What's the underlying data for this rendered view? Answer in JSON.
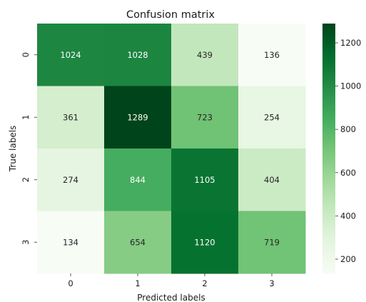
{
  "chart_data": {
    "type": "heatmap",
    "title": "Confusion matrix",
    "xlabel": "Predicted labels",
    "ylabel": "True labels",
    "x_categories": [
      "0",
      "1",
      "2",
      "3"
    ],
    "y_categories": [
      "0",
      "1",
      "2",
      "3"
    ],
    "values": [
      [
        1024,
        1028,
        439,
        136
      ],
      [
        361,
        1289,
        723,
        254
      ],
      [
        274,
        844,
        1105,
        404
      ],
      [
        134,
        654,
        1120,
        719
      ]
    ],
    "colormap": "Greens",
    "color_range": [
      134,
      1289
    ],
    "colorbar_ticks": [
      200,
      400,
      600,
      800,
      1000,
      1200
    ],
    "colors": {
      "low": "#f7fcf5",
      "high": "#00441b",
      "text_on_light": "#262626",
      "text_on_dark": "#ffffff"
    }
  }
}
